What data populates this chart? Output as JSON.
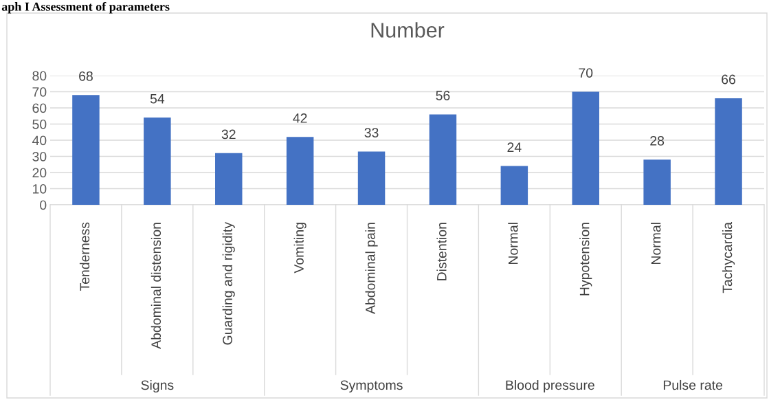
{
  "chart_data": {
    "type": "bar",
    "title": "Number",
    "annotations": [
      "aph I Assessment of parameters",
      "Signs",
      "Symptoms",
      "Blood pressure",
      "Pulse rate"
    ],
    "categories": [
      "Tenderness",
      "Abdominal distension",
      "Guarding and rigidity",
      "Vomiting",
      "Abdominal pain",
      "Distention",
      "Normal",
      "Hypotension",
      "Normal",
      "Tachycardia"
    ],
    "values": [
      68,
      54,
      32,
      42,
      33,
      56,
      24,
      70,
      28,
      66
    ],
    "color": "#4472c4",
    "data_labels": true,
    "ylim": [
      0,
      80
    ],
    "yticks": [
      0,
      10,
      20,
      30,
      40,
      50,
      60,
      70,
      80
    ],
    "grid": "y",
    "legend": false
  }
}
